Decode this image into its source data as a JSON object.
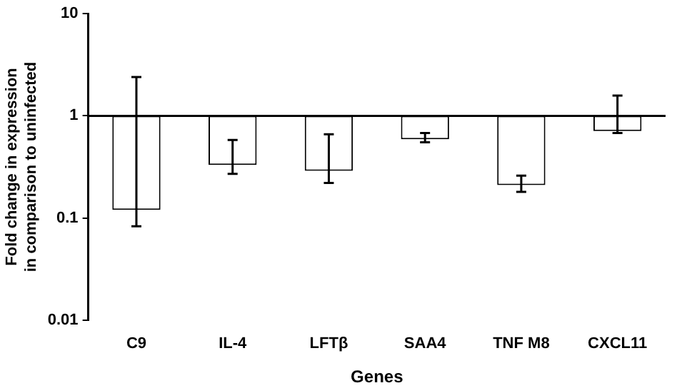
{
  "chart_data": {
    "type": "bar",
    "xlabel": "Genes",
    "ylabel": "Fold change in expression\nin comparison to uninfected",
    "categories": [
      "C9",
      "IL-4",
      "LFTβ",
      "SAA4",
      "TNF M8",
      "CXCL11"
    ],
    "values": [
      -0.88,
      -0.67,
      -0.71,
      -0.41,
      -0.79,
      -0.29
    ],
    "base": [
      1,
      1,
      1,
      1,
      1,
      1
    ],
    "errors": [
      [
        0.083,
        2.4
      ],
      [
        0.27,
        0.58
      ],
      [
        0.22,
        0.66
      ],
      [
        0.55,
        0.68
      ],
      [
        0.18,
        0.26
      ],
      [
        0.68,
        1.58
      ]
    ],
    "color": "#ffffff",
    "log": "y",
    "ylim": [
      0.01,
      10
    ],
    "yticks": [
      0.01,
      0.1,
      1,
      10
    ],
    "grid": false,
    "legend": false,
    "ref_lines": [
      {
        "axis": "y",
        "value": 1,
        "color": "#000000"
      }
    ]
  }
}
